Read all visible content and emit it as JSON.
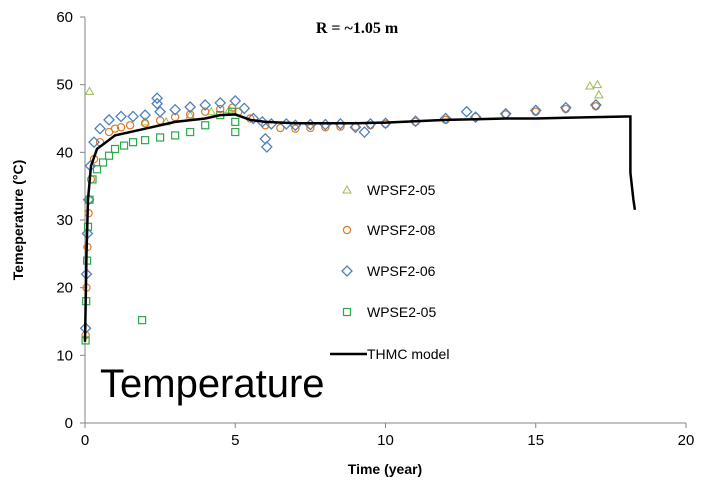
{
  "chart_data": {
    "type": "scatter",
    "title": "",
    "xlabel": "Time (year)",
    "ylabel": "Temeperature (°C)",
    "xlim": [
      0,
      20
    ],
    "ylim": [
      0,
      60
    ],
    "xticks": [
      "0",
      "5",
      "10",
      "15",
      "20"
    ],
    "yticks": [
      "0",
      "10",
      "20",
      "30",
      "40",
      "50",
      "60"
    ],
    "grid": false,
    "annotation": "R = ~1.05 m",
    "overlay_label": "Temperature",
    "legend_position": "center",
    "series": [
      {
        "name": "WPSF2-05",
        "marker": "triangle",
        "color": "#9bbb59",
        "points": [
          [
            0.15,
            49.0
          ],
          [
            2.0,
            44.5
          ],
          [
            2.7,
            44.5
          ],
          [
            3.5,
            45.5
          ],
          [
            4.2,
            46.0
          ],
          [
            4.8,
            46.3
          ],
          [
            16.8,
            49.8
          ],
          [
            17.05,
            50.0
          ],
          [
            17.1,
            48.5
          ]
        ]
      },
      {
        "name": "WPSF2-08",
        "marker": "circle",
        "color": "#e07b1f",
        "points": [
          [
            0.02,
            13.0
          ],
          [
            0.05,
            20.0
          ],
          [
            0.08,
            26.0
          ],
          [
            0.12,
            31.0
          ],
          [
            0.2,
            36.0
          ],
          [
            0.3,
            39.0
          ],
          [
            0.5,
            41.5
          ],
          [
            0.8,
            43.0
          ],
          [
            1.0,
            43.5
          ],
          [
            1.2,
            43.7
          ],
          [
            1.5,
            44.0
          ],
          [
            2.0,
            44.3
          ],
          [
            2.5,
            44.7
          ],
          [
            3.0,
            45.2
          ],
          [
            3.5,
            45.6
          ],
          [
            4.0,
            46.0
          ],
          [
            4.5,
            46.4
          ],
          [
            4.9,
            46.6
          ],
          [
            5.1,
            46.0
          ],
          [
            5.5,
            45.0
          ],
          [
            6.0,
            44.0
          ],
          [
            6.5,
            43.6
          ],
          [
            7.0,
            43.5
          ],
          [
            7.5,
            43.6
          ],
          [
            8.0,
            43.7
          ],
          [
            8.5,
            43.8
          ],
          [
            9.0,
            43.8
          ],
          [
            9.5,
            44.0
          ],
          [
            10.0,
            44.2
          ],
          [
            11.0,
            44.5
          ],
          [
            12.0,
            44.8
          ],
          [
            13.0,
            45.2
          ],
          [
            14.0,
            45.6
          ],
          [
            15.0,
            46.0
          ],
          [
            16.0,
            46.4
          ],
          [
            17.0,
            46.8
          ]
        ]
      },
      {
        "name": "WPSF2-06",
        "marker": "diamond",
        "color": "#4f81bd",
        "points": [
          [
            0.02,
            14.0
          ],
          [
            0.05,
            22.0
          ],
          [
            0.08,
            28.0
          ],
          [
            0.12,
            33.0
          ],
          [
            0.18,
            38.0
          ],
          [
            0.3,
            41.5
          ],
          [
            0.5,
            43.5
          ],
          [
            0.8,
            44.8
          ],
          [
            1.2,
            45.3
          ],
          [
            1.6,
            45.3
          ],
          [
            2.0,
            45.5
          ],
          [
            2.4,
            48.0
          ],
          [
            2.4,
            47.2
          ],
          [
            2.5,
            46.0
          ],
          [
            3.0,
            46.3
          ],
          [
            3.5,
            46.7
          ],
          [
            4.0,
            47.0
          ],
          [
            4.5,
            47.3
          ],
          [
            5.0,
            47.6
          ],
          [
            5.3,
            46.5
          ],
          [
            5.6,
            45.0
          ],
          [
            5.9,
            44.5
          ],
          [
            6.0,
            42.0
          ],
          [
            6.05,
            40.8
          ],
          [
            6.2,
            44.2
          ],
          [
            6.7,
            44.2
          ],
          [
            7.0,
            44.0
          ],
          [
            7.5,
            44.1
          ],
          [
            8.0,
            44.1
          ],
          [
            8.5,
            44.2
          ],
          [
            9.0,
            43.7
          ],
          [
            9.3,
            43.0
          ],
          [
            9.5,
            44.2
          ],
          [
            10.0,
            44.3
          ],
          [
            11.0,
            44.6
          ],
          [
            12.0,
            45.0
          ],
          [
            12.7,
            46.0
          ],
          [
            13.0,
            45.2
          ],
          [
            14.0,
            45.7
          ],
          [
            15.0,
            46.2
          ],
          [
            16.0,
            46.6
          ],
          [
            17.0,
            47.0
          ]
        ]
      },
      {
        "name": "WPSE2-05",
        "marker": "square",
        "color": "#2aa84a",
        "points": [
          [
            0.02,
            12.2
          ],
          [
            0.04,
            18.0
          ],
          [
            0.07,
            24.0
          ],
          [
            0.1,
            29.0
          ],
          [
            0.15,
            33.0
          ],
          [
            0.25,
            36.0
          ],
          [
            0.4,
            37.5
          ],
          [
            0.6,
            38.5
          ],
          [
            0.8,
            39.5
          ],
          [
            1.0,
            40.5
          ],
          [
            1.3,
            41.0
          ],
          [
            1.6,
            41.5
          ],
          [
            1.9,
            15.2
          ],
          [
            2.0,
            41.8
          ],
          [
            2.5,
            42.2
          ],
          [
            3.0,
            42.5
          ],
          [
            3.5,
            43.0
          ],
          [
            4.0,
            44.0
          ],
          [
            4.5,
            45.5
          ],
          [
            4.9,
            46.0
          ],
          [
            5.0,
            43.0
          ],
          [
            5.0,
            44.5
          ]
        ]
      },
      {
        "name": "THMC model",
        "marker": "line",
        "color": "#000000",
        "points": [
          [
            0.0,
            12.0
          ],
          [
            0.05,
            25.0
          ],
          [
            0.1,
            33.0
          ],
          [
            0.2,
            38.0
          ],
          [
            0.4,
            40.5
          ],
          [
            0.7,
            41.5
          ],
          [
            1.0,
            42.5
          ],
          [
            2.0,
            43.5
          ],
          [
            3.0,
            44.5
          ],
          [
            4.0,
            45.0
          ],
          [
            4.5,
            45.5
          ],
          [
            5.0,
            45.6
          ],
          [
            5.5,
            44.8
          ],
          [
            6.0,
            44.5
          ],
          [
            7.0,
            44.3
          ],
          [
            8.0,
            44.3
          ],
          [
            9.0,
            44.3
          ],
          [
            10.0,
            44.4
          ],
          [
            11.0,
            44.6
          ],
          [
            12.0,
            44.8
          ],
          [
            13.0,
            44.9
          ],
          [
            14.0,
            45.0
          ],
          [
            15.0,
            45.0
          ],
          [
            16.0,
            45.1
          ],
          [
            17.0,
            45.2
          ],
          [
            18.0,
            45.3
          ],
          [
            18.15,
            45.3
          ],
          [
            18.15,
            37.0
          ],
          [
            18.2,
            35.0
          ],
          [
            18.25,
            33.0
          ],
          [
            18.3,
            31.5
          ]
        ]
      }
    ]
  }
}
